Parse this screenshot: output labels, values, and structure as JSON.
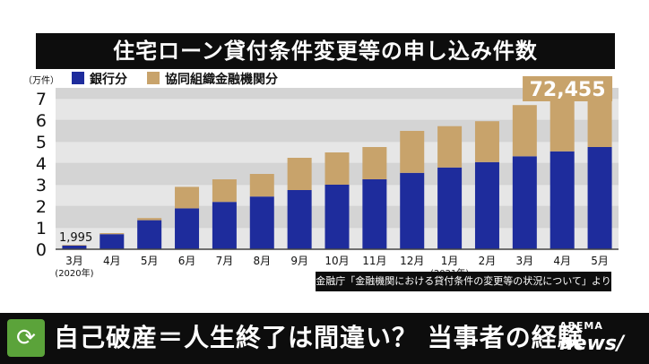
{
  "title": "住宅ローン貸付条件変更等の申し込み件数",
  "source": "金融庁「金融機関における貸付条件の変更等の状況について」より",
  "ticker": {
    "headline": "自己破産＝人生終了は間違い？ 当事者の経験",
    "icon": "refresh-arrows-icon",
    "logo_top": "ABEMA",
    "logo_bottom": "news/"
  },
  "chart_data": {
    "type": "bar",
    "stacked": true,
    "y_unit_label": "（万件）",
    "ylim": [
      0,
      7.5
    ],
    "yticks": [
      "0",
      "1",
      "2",
      "3",
      "4",
      "5",
      "6",
      "7"
    ],
    "grid": true,
    "legend_position": "top-left",
    "categories": [
      "3月",
      "4月",
      "5月",
      "6月",
      "7月",
      "8月",
      "9月",
      "10月",
      "11月",
      "12月",
      "1月",
      "2月",
      "3月",
      "4月",
      "5月"
    ],
    "year_labels": [
      {
        "index": 0,
        "text": "(2020年)"
      },
      {
        "index": 10,
        "text": "(2021年)"
      }
    ],
    "series": [
      {
        "name": "銀行分",
        "color": "#1e2c9c",
        "values": [
          0.17,
          0.7,
          1.35,
          1.9,
          2.2,
          2.45,
          2.75,
          3.0,
          3.25,
          3.55,
          3.8,
          4.05,
          4.32,
          4.55,
          4.75
        ]
      },
      {
        "name": "協同組織金融機関分",
        "color": "#c8a36b",
        "values": [
          0.03,
          0.05,
          0.1,
          1.0,
          1.05,
          1.05,
          1.5,
          1.5,
          1.5,
          1.95,
          1.92,
          1.9,
          2.38,
          2.4,
          2.5
        ]
      }
    ],
    "annotations": [
      {
        "index": 0,
        "text": "1,995"
      },
      {
        "index": 14,
        "text": "72,455"
      }
    ]
  }
}
